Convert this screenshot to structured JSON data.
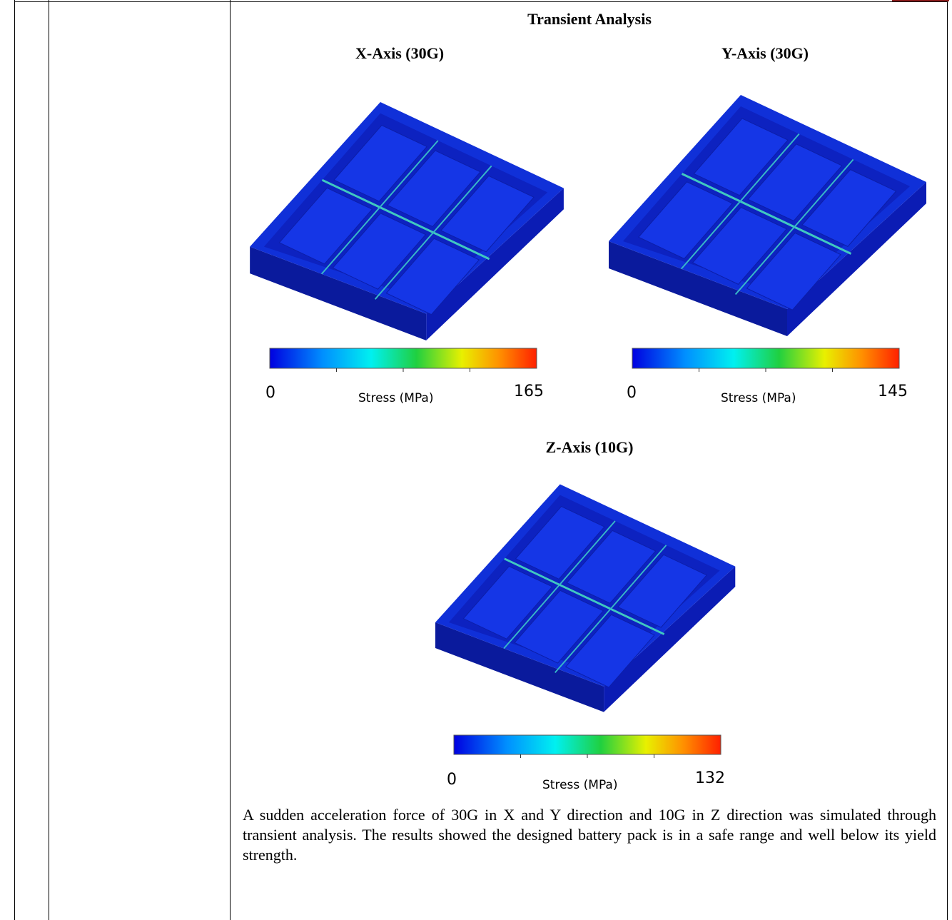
{
  "header": {
    "title": "Transient Analysis"
  },
  "panels": [
    {
      "label": "X-Axis (30G)",
      "colorbar": {
        "min": "0",
        "axis_label": "Stress (MPa)",
        "max": "165"
      }
    },
    {
      "label": "Y-Axis (30G)",
      "colorbar": {
        "min": "0",
        "axis_label": "Stress (MPa)",
        "max": "145"
      }
    },
    {
      "label": "Z-Axis (10G)",
      "colorbar": {
        "min": "0",
        "axis_label": "Stress (MPa)",
        "max": "132"
      }
    }
  ],
  "paragraph": "A sudden acceleration force of 30G in X and Y direction and 10G in Z direction was simulated through transient analysis. The results showed the designed battery pack is in a safe range and well below its yield strength."
}
